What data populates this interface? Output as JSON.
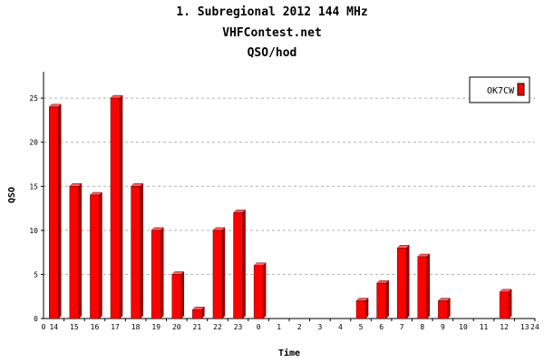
{
  "header": {
    "title": "1. Subregional 2012 144 MHz",
    "site": "VHFContest.net",
    "subtitle": "QSO/hod"
  },
  "chart_data": {
    "type": "bar",
    "title": "1. Subregional 2012 144 MHz",
    "subtitle": "QSO/hod",
    "xlabel": "Time",
    "ylabel": "QSO",
    "ylim": [
      0,
      28
    ],
    "yticks": [
      0,
      5,
      10,
      15,
      20,
      25
    ],
    "x_axis_start_label": "0",
    "x_axis_end_label": "24",
    "grid": true,
    "legend_position": "top-right",
    "bar_color": "#ff0000",
    "categories": [
      "14",
      "15",
      "16",
      "17",
      "18",
      "19",
      "20",
      "21",
      "22",
      "23",
      "0",
      "1",
      "2",
      "3",
      "4",
      "5",
      "6",
      "7",
      "8",
      "9",
      "10",
      "11",
      "12",
      "13"
    ],
    "series": [
      {
        "name": "OK7CW",
        "values": [
          24,
          15,
          14,
          25,
          15,
          10,
          5,
          1,
          10,
          12,
          6,
          0,
          0,
          0,
          0,
          2,
          4,
          8,
          7,
          2,
          0,
          0,
          3,
          0
        ]
      }
    ]
  }
}
